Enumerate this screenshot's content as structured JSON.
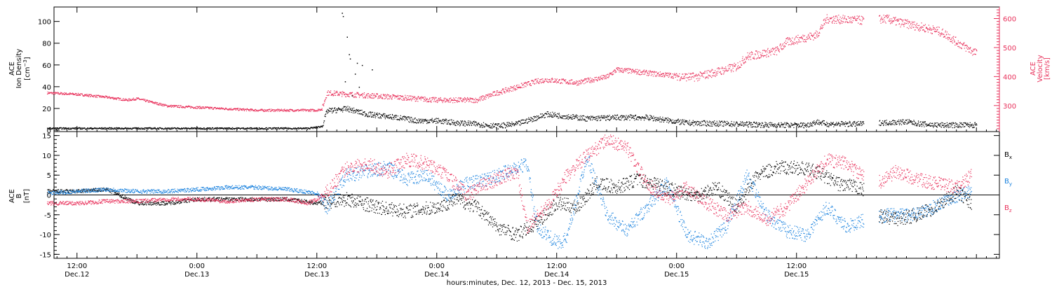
{
  "chart_data": [
    {
      "type": "scatter",
      "panel": "top",
      "ylabel_left": [
        "ACE",
        "Ion Density",
        "[cm⁻³]"
      ],
      "ylabel_right": [
        "ACE",
        "Velocity",
        "[km/s]"
      ],
      "ylim_left": [
        0,
        112
      ],
      "ylim_right": [
        215,
        635
      ],
      "yticks_left": [
        0,
        20,
        40,
        60,
        80,
        100
      ],
      "yticks_right": [
        300,
        400,
        500,
        600
      ],
      "colors": {
        "density": "#000000",
        "velocity": "#e8315b"
      },
      "series": [
        {
          "axis": "left",
          "color": "#000000",
          "t": [
            -3,
            3,
            12,
            15,
            23,
            24,
            24.5,
            25,
            27,
            29,
            32,
            34,
            36,
            38,
            40,
            42,
            44,
            46,
            47,
            48,
            49,
            51,
            54,
            57,
            61,
            66,
            70,
            73,
            74,
            75,
            78.5,
            79,
            80,
            83,
            84.5,
            86,
            88,
            90
          ],
          "v": [
            2,
            2,
            2,
            2,
            2,
            3,
            4,
            18,
            20,
            15,
            12,
            9,
            9,
            7,
            6,
            4,
            6,
            12,
            15,
            14,
            13,
            11,
            12,
            12,
            7,
            6,
            5,
            5,
            8,
            6,
            6,
            7,
            7,
            8,
            6,
            5,
            5,
            5
          ]
        },
        {
          "axis": "right",
          "color": "#e8315b",
          "t": [
            -3,
            0,
            3,
            5,
            6,
            9,
            12,
            15,
            18,
            21,
            24,
            24.5,
            25,
            28,
            32,
            36,
            40,
            42,
            46,
            47,
            50,
            53,
            54,
            58,
            61,
            62,
            66,
            67,
            70,
            71,
            74,
            75,
            78.5,
            80,
            81,
            82,
            84,
            86,
            87,
            88,
            89,
            90
          ],
          "v": [
            345,
            340,
            330,
            320,
            325,
            300,
            295,
            290,
            285,
            285,
            285,
            290,
            345,
            338,
            330,
            320,
            320,
            345,
            385,
            390,
            380,
            400,
            425,
            410,
            400,
            400,
            435,
            470,
            490,
            520,
            545,
            600,
            595,
            598,
            600,
            590,
            575,
            560,
            545,
            520,
            500,
            480
          ]
        }
      ],
      "outliers": {
        "t": [
          26.5,
          26.6,
          27,
          27.2,
          27.3,
          28,
          28.5,
          29.5,
          27.8,
          28.2,
          26.8,
          27.5
        ],
        "v": [
          108,
          105,
          86,
          70,
          66,
          62,
          60,
          56,
          52,
          40,
          45,
          32
        ]
      }
    },
    {
      "type": "scatter",
      "panel": "bottom",
      "ylabel_left": [
        "ACE",
        "B",
        "[nT]"
      ],
      "ylim": [
        -16,
        16
      ],
      "yticks": [
        -15,
        -10,
        -5,
        0,
        5,
        10,
        15
      ],
      "zero_line": true,
      "legend": [
        "Bx",
        "By",
        "Bz"
      ],
      "series": [
        {
          "name": "Bx",
          "color": "#000000",
          "t": [
            -3,
            0,
            3,
            6,
            9,
            12,
            15,
            18,
            21,
            24,
            27,
            30,
            33,
            36,
            38,
            40,
            42,
            44,
            46,
            48,
            50,
            52,
            54,
            56,
            58,
            60,
            62,
            64,
            66,
            68,
            70,
            72,
            74,
            76,
            78,
            79,
            80,
            82,
            84,
            86,
            88,
            89.5
          ],
          "v": [
            1,
            1,
            1.5,
            -2,
            -2,
            -1,
            -1,
            -1,
            -1,
            -2,
            -1,
            -3,
            -4,
            -3,
            -1,
            -3,
            -8,
            -10,
            -7,
            -2,
            -3,
            3,
            2,
            4,
            3,
            1,
            0,
            2,
            -3,
            5,
            7,
            7,
            6,
            3,
            2,
            1,
            -5,
            -6,
            -5,
            -3,
            1,
            -2
          ]
        },
        {
          "name": "By",
          "color": "#1a82de",
          "t": [
            -3,
            0,
            3,
            6,
            9,
            12,
            15,
            18,
            21,
            24,
            25,
            27,
            29,
            31,
            33,
            35,
            37,
            39,
            41,
            43,
            45,
            46,
            48,
            49,
            51,
            53,
            55,
            57,
            59,
            61,
            63,
            65,
            67,
            69,
            71,
            73,
            75,
            77,
            79,
            81,
            83,
            85,
            87,
            89.5
          ],
          "v": [
            0.5,
            1,
            1.5,
            1,
            1,
            1.5,
            2,
            2,
            1.5,
            0.5,
            -3,
            5,
            6,
            7,
            4,
            5,
            0,
            3,
            4,
            6,
            8,
            -8,
            -12,
            -11,
            10,
            -5,
            -9,
            -3,
            3,
            -10,
            -12,
            -8,
            5,
            -5,
            -9,
            -10,
            -3,
            -8,
            -6,
            -5,
            -5,
            -4,
            -1,
            1
          ]
        },
        {
          "name": "Bz",
          "color": "#e8315b",
          "t": [
            -3,
            0,
            3,
            6,
            9,
            12,
            15,
            18,
            21,
            23,
            24,
            25,
            27,
            29,
            31,
            33,
            35,
            37,
            39,
            40,
            42,
            44,
            45,
            47,
            49,
            51,
            53,
            55,
            57,
            59,
            61,
            63,
            65,
            67,
            69,
            71,
            73,
            75,
            77,
            78.5,
            80,
            82,
            84,
            86,
            88,
            89.5
          ],
          "v": [
            -2,
            -2,
            -1.5,
            -1.5,
            -1,
            -1,
            -1.5,
            -1,
            -1,
            -2,
            -1,
            1,
            7,
            8,
            6,
            9,
            8,
            5,
            0,
            2,
            4,
            6,
            -8,
            -3,
            5,
            10,
            14,
            12,
            3,
            -1,
            2,
            -2,
            -5,
            -3,
            -6,
            -3,
            3,
            9,
            8,
            5,
            3,
            6,
            4,
            3,
            2,
            5
          ]
        }
      ]
    }
  ],
  "xaxis": {
    "tick_labels": [
      {
        "time": "12:00",
        "date": "Dec.12"
      },
      {
        "time": "0:00",
        "date": "Dec.13"
      },
      {
        "time": "12:00",
        "date": "Dec.13"
      },
      {
        "time": "0:00",
        "date": "Dec.14"
      },
      {
        "time": "12:00",
        "date": "Dec.14"
      },
      {
        "time": "0:00",
        "date": "Dec.15"
      },
      {
        "time": "12:00",
        "date": "Dec.15"
      }
    ],
    "title": "hours:minutes, Dec. 12, 2013 - Dec. 15, 2013",
    "range_hours_from_dec12_12": [
      -2.3,
      92.3
    ]
  },
  "legend_labels": {
    "bx": "B",
    "bx_sub": "x",
    "by": "B",
    "by_sub": "y",
    "bz": "B",
    "bz_sub": "z"
  },
  "density_label": {
    "l1": "ACE",
    "l2": "Ion Density",
    "l3": "[cm",
    "l3_sup": "−3",
    "l3_end": "]"
  },
  "velocity_label": {
    "l1": "ACE",
    "l2": "Velocity",
    "l3": "[km/s]"
  },
  "field_label": {
    "l1": "ACE",
    "l2": "B",
    "l3": "[nT]"
  }
}
